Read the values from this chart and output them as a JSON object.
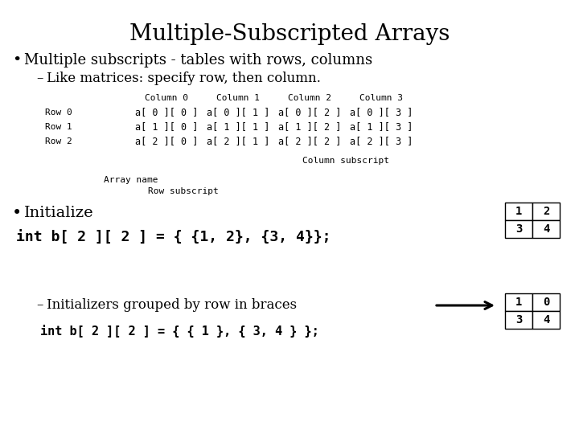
{
  "title": "Multiple-Subscripted Arrays",
  "bg_color": "#ffffff",
  "bullet1": "Multiple subscripts - tables with rows, columns",
  "sub_bullet1": "Like matrices: specify row, then column.",
  "col_headers": [
    "Column 0",
    "Column 1",
    "Column 2",
    "Column 3"
  ],
  "row_labels": [
    "Row 0",
    "Row 1",
    "Row 2"
  ],
  "array_rows": [
    [
      "a[ 0 ][ 0 ]",
      "a[ 0 ][ 1 ]",
      "a[ 0 ][ 2 ]",
      "a[ 0 ][ 3 ]"
    ],
    [
      "a[ 1 ][ 0 ]",
      "a[ 1 ][ 1 ]",
      "a[ 1 ][ 2 ]",
      "a[ 1 ][ 3 ]"
    ],
    [
      "a[ 2 ][ 0 ]",
      "a[ 2 ][ 1 ]",
      "a[ 2 ][ 2 ]",
      "a[ 2 ][ 3 ]"
    ]
  ],
  "col_subscript_label": "Column subscript",
  "array_name_label": "Array name",
  "row_subscript_label": "Row subscript",
  "bullet2": "Initialize",
  "code1": "int b[ 2 ][ 2 ] = { {1, 2}, {3, 4}};",
  "table1": [
    [
      1,
      2
    ],
    [
      3,
      4
    ]
  ],
  "sub_bullet2": "Initializers grouped by row in braces",
  "code2": "int b[ 2 ][ 2 ] = { { 1 }, { 3, 4 } };",
  "table2": [
    [
      1,
      0
    ],
    [
      3,
      4
    ]
  ],
  "title_fontsize": 20,
  "bullet1_fontsize": 13,
  "sub_bullet1_fontsize": 12,
  "mono_fontsize": 8,
  "bullet2_fontsize": 14,
  "code1_fontsize": 13,
  "code2_fontsize": 11
}
